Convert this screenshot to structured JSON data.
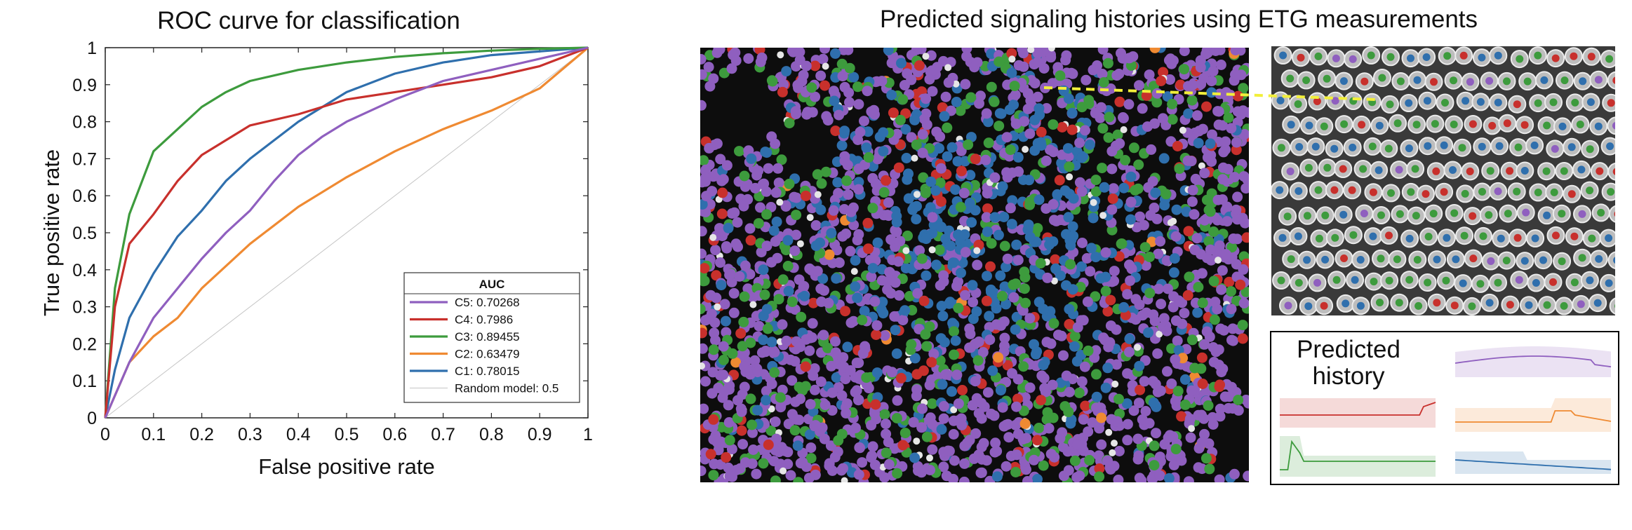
{
  "left_title": "ROC curve for classification",
  "right_title": "Predicted signaling histories using ETG measurements",
  "chart_data": {
    "type": "line",
    "title": "ROC curve for classification",
    "xlabel": "False positive rate",
    "ylabel": "True positive rate",
    "xlim": [
      0,
      1
    ],
    "ylim": [
      0,
      1
    ],
    "xticks": [
      "0",
      "0.1",
      "0.2",
      "0.3",
      "0.4",
      "0.5",
      "0.6",
      "0.7",
      "0.8",
      "0.9",
      "1"
    ],
    "yticks": [
      "0",
      "0.1",
      "0.2",
      "0.3",
      "0.4",
      "0.5",
      "0.6",
      "0.7",
      "0.8",
      "0.9",
      "1"
    ],
    "grid": false,
    "legend_title": "AUC",
    "legend_position": "bottom-right",
    "series": [
      {
        "name": "C5: 0.70268",
        "color": "#8f5fbf",
        "x": [
          0,
          0.05,
          0.1,
          0.15,
          0.2,
          0.25,
          0.3,
          0.35,
          0.4,
          0.45,
          0.5,
          0.6,
          0.7,
          0.8,
          0.9,
          1
        ],
        "y": [
          0,
          0.15,
          0.27,
          0.35,
          0.43,
          0.5,
          0.56,
          0.64,
          0.71,
          0.76,
          0.8,
          0.86,
          0.91,
          0.94,
          0.97,
          1
        ]
      },
      {
        "name": "C4: 0.7986",
        "color": "#c8302c",
        "x": [
          0,
          0.02,
          0.05,
          0.1,
          0.15,
          0.2,
          0.25,
          0.3,
          0.4,
          0.5,
          0.6,
          0.7,
          0.8,
          0.9,
          1
        ],
        "y": [
          0,
          0.3,
          0.47,
          0.55,
          0.64,
          0.71,
          0.75,
          0.79,
          0.82,
          0.86,
          0.88,
          0.9,
          0.92,
          0.95,
          1
        ]
      },
      {
        "name": "C3: 0.89455",
        "color": "#3d9b3d",
        "x": [
          0,
          0.02,
          0.05,
          0.1,
          0.15,
          0.2,
          0.25,
          0.3,
          0.4,
          0.5,
          0.6,
          0.7,
          0.8,
          0.9,
          1
        ],
        "y": [
          0,
          0.35,
          0.55,
          0.72,
          0.78,
          0.84,
          0.88,
          0.91,
          0.94,
          0.96,
          0.975,
          0.985,
          0.992,
          0.997,
          1
        ]
      },
      {
        "name": "C2: 0.63479",
        "color": "#ef8a32",
        "x": [
          0,
          0.05,
          0.1,
          0.15,
          0.2,
          0.3,
          0.4,
          0.5,
          0.6,
          0.7,
          0.8,
          0.9,
          1
        ],
        "y": [
          0,
          0.15,
          0.22,
          0.27,
          0.35,
          0.47,
          0.57,
          0.65,
          0.72,
          0.78,
          0.83,
          0.89,
          1
        ]
      },
      {
        "name": "C1: 0.78015",
        "color": "#2f6fad",
        "x": [
          0,
          0.02,
          0.05,
          0.1,
          0.15,
          0.2,
          0.25,
          0.3,
          0.4,
          0.5,
          0.6,
          0.7,
          0.8,
          0.9,
          1
        ],
        "y": [
          0,
          0.13,
          0.27,
          0.39,
          0.49,
          0.56,
          0.64,
          0.7,
          0.8,
          0.88,
          0.93,
          0.96,
          0.98,
          0.99,
          1
        ]
      },
      {
        "name": "Random model: 0.5",
        "color": "#c4c4c4",
        "x": [
          0,
          1
        ],
        "y": [
          0,
          1
        ]
      }
    ]
  },
  "history_panel": {
    "label": "Predicted history",
    "traces": [
      {
        "class": "C5",
        "color": "#8f5fbf"
      },
      {
        "class": "C4",
        "color": "#c8302c"
      },
      {
        "class": "C2",
        "color": "#ef8a32"
      },
      {
        "class": "C3",
        "color": "#3d9b3d"
      },
      {
        "class": "C1",
        "color": "#2f6fad"
      }
    ]
  },
  "cell_class_colors": [
    "#8f5fbf",
    "#c8302c",
    "#3d9b3d",
    "#ef8a32",
    "#2f6fad"
  ],
  "zoom_marker_color": "#f2ef3a"
}
